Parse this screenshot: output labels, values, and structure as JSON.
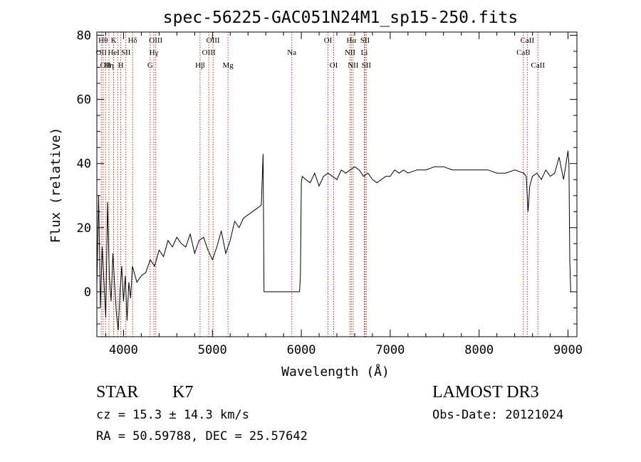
{
  "chart_data": {
    "type": "line",
    "title": "spec-56225-GAC051N24M1_sp15-250.fits",
    "xlabel": "Wavelength (Å)",
    "ylabel": "Flux (relative)",
    "xlim": [
      3700,
      9100
    ],
    "ylim": [
      -14,
      81
    ],
    "xticks": [
      4000,
      5000,
      6000,
      7000,
      8000,
      9000
    ],
    "yticks": [
      0,
      20,
      40,
      60,
      80
    ],
    "grid": false,
    "line_color": "#000000",
    "marker_color": "#b03020",
    "series": [
      {
        "x": [
          3700,
          3720,
          3740,
          3760,
          3780,
          3800,
          3820,
          3840,
          3860,
          3880,
          3900,
          3920,
          3940,
          3960,
          3980,
          4000,
          4020,
          4040,
          4060,
          4080,
          4100,
          4150,
          4200,
          4250,
          4300,
          4350,
          4400,
          4450,
          4500,
          4550,
          4600,
          4650,
          4700,
          4750,
          4800,
          4850,
          4900,
          4950,
          5000,
          5050,
          5100,
          5150,
          5200,
          5250,
          5300,
          5350,
          5400,
          5450,
          5500,
          5550,
          5570,
          5580,
          5590,
          5600,
          5980,
          5990,
          6000,
          6010,
          6050,
          6100,
          6150,
          6200,
          6250,
          6300,
          6350,
          6400,
          6450,
          6500,
          6550,
          6600,
          6650,
          6700,
          6750,
          6800,
          6850,
          6900,
          6950,
          7000,
          7050,
          7100,
          7150,
          7200,
          7300,
          7400,
          7500,
          7600,
          7700,
          7800,
          7900,
          8000,
          8100,
          8200,
          8300,
          8400,
          8500,
          8530,
          8550,
          8570,
          8600,
          8650,
          8700,
          8750,
          8800,
          8850,
          8900,
          8950,
          9000,
          9010,
          9020,
          9030
        ],
        "y": [
          2,
          30,
          -5,
          14,
          3,
          -8,
          28,
          5,
          -3,
          12,
          2,
          -7,
          -12,
          0,
          8,
          -3,
          5,
          -9,
          3,
          -2,
          8,
          3,
          5,
          6,
          10,
          8,
          13,
          11,
          16,
          14,
          17,
          15,
          14,
          18,
          12,
          16,
          17,
          13,
          10,
          14,
          19,
          12,
          16,
          22,
          20,
          23,
          24,
          25,
          26,
          27,
          43,
          0,
          0,
          0,
          0,
          5,
          34,
          36,
          35,
          34,
          37,
          33,
          36,
          37,
          36,
          35,
          38,
          37,
          38,
          39,
          38,
          36,
          37,
          35,
          34,
          35,
          36,
          36,
          38,
          37,
          38,
          37,
          38,
          38,
          39,
          39,
          38,
          38,
          38,
          38,
          38,
          37,
          37,
          38,
          37,
          36,
          25,
          33,
          36,
          37,
          35,
          38,
          36,
          37,
          42,
          35,
          44,
          40,
          10,
          0
        ],
        "labels": []
      }
    ],
    "line_markers": [
      {
        "x": 3750,
        "label": "OII",
        "row": 2
      },
      {
        "x": 3770,
        "label": "Hθ",
        "row": 1
      },
      {
        "x": 3798,
        "label": "OII",
        "row": 3
      },
      {
        "x": 3836,
        "label": "Hη",
        "row": 3
      },
      {
        "x": 3889,
        "label": "K",
        "row": 1
      },
      {
        "x": 3889,
        "label": "HeI",
        "row": 2
      },
      {
        "x": 3934,
        "label": "",
        "row": 1
      },
      {
        "x": 3969,
        "label": "H",
        "row": 3
      },
      {
        "x": 4026,
        "label": "SII",
        "row": 2
      },
      {
        "x": 4102,
        "label": "Hδ",
        "row": 1
      },
      {
        "x": 4300,
        "label": "G",
        "row": 3
      },
      {
        "x": 4341,
        "label": "Hγ",
        "row": 2
      },
      {
        "x": 4363,
        "label": "OIII",
        "row": 1
      },
      {
        "x": 4861,
        "label": "Hβ",
        "row": 3
      },
      {
        "x": 4959,
        "label": "OIII",
        "row": 2
      },
      {
        "x": 5007,
        "label": "OIII",
        "row": 1
      },
      {
        "x": 5175,
        "label": "Mg",
        "row": 3
      },
      {
        "x": 5893,
        "label": "Na",
        "row": 2
      },
      {
        "x": 6300,
        "label": "OI",
        "row": 1
      },
      {
        "x": 6364,
        "label": "OI",
        "row": 3
      },
      {
        "x": 6548,
        "label": "NII",
        "row": 2
      },
      {
        "x": 6563,
        "label": "Hα",
        "row": 1
      },
      {
        "x": 6583,
        "label": "NII",
        "row": 3
      },
      {
        "x": 6708,
        "label": "Li",
        "row": 2
      },
      {
        "x": 6716,
        "label": "SII",
        "row": 1
      },
      {
        "x": 6731,
        "label": "SII",
        "row": 3
      },
      {
        "x": 8498,
        "label": "CaII",
        "row": 2
      },
      {
        "x": 8542,
        "label": "CaII",
        "row": 1
      },
      {
        "x": 8662,
        "label": "CaII",
        "row": 3
      }
    ]
  },
  "info": {
    "object_class": "STAR",
    "subclass": "K7",
    "survey": "LAMOST DR3",
    "redshift_text": "cz =  15.3 ± 14.3 km/s",
    "obs_date": "Obs-Date: 20121024",
    "coords": "RA =  50.59788, DEC =  25.57642"
  }
}
